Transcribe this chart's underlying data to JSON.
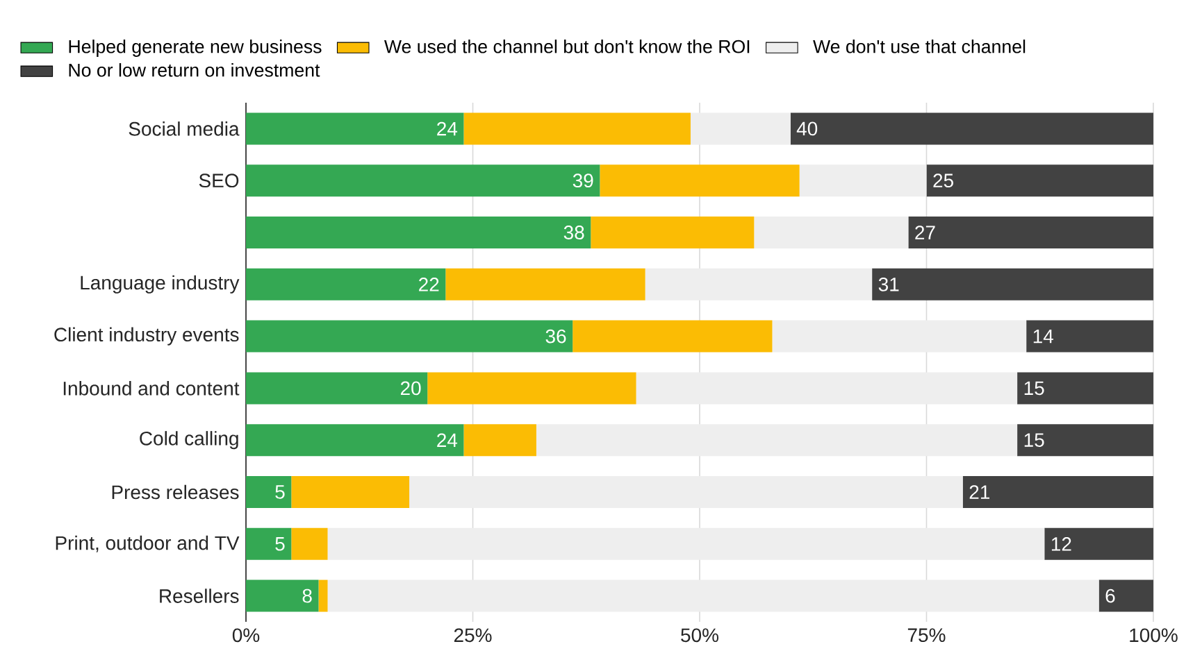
{
  "chart_data": {
    "type": "bar",
    "orientation": "horizontal",
    "stacked": true,
    "legend": "top",
    "grid": "x",
    "categories": [
      "Social media",
      "SEO",
      null,
      "Language industry",
      "Client industry events",
      "Inbound and content",
      "Cold calling",
      "Press releases",
      "Print, outdoor and TV",
      "Resellers"
    ],
    "series": [
      {
        "name": "Helped generate new business",
        "color": "#34a853",
        "values": [
          24,
          39,
          38,
          22,
          36,
          20,
          24,
          5,
          5,
          8
        ],
        "value_labels": [
          "24",
          "39",
          "38",
          "22",
          "36",
          "20",
          "24",
          "5",
          "5",
          "8"
        ]
      },
      {
        "name": "We used the channel but don't know the ROI",
        "color": "#fbbc04",
        "values": [
          25,
          22,
          18,
          22,
          22,
          23,
          8,
          13,
          4,
          1
        ]
      },
      {
        "name": "We don't use that channel",
        "color": "#eeeeee",
        "values": [
          11,
          14,
          17,
          25,
          28,
          42,
          53,
          61,
          79,
          85
        ]
      },
      {
        "name": "No or low return on investment",
        "color": "#424242",
        "values": [
          40,
          25,
          27,
          31,
          14,
          15,
          15,
          21,
          12,
          6
        ],
        "value_labels": [
          "40",
          "25",
          "27",
          "31",
          "14",
          "15",
          "15",
          "21",
          "12",
          "6"
        ]
      }
    ],
    "xlim": [
      0,
      100
    ],
    "xticks": [
      {
        "value": 0,
        "label": "0%"
      },
      {
        "value": 25,
        "label": "25%"
      },
      {
        "value": 50,
        "label": "50%"
      },
      {
        "value": 75,
        "label": "75%"
      },
      {
        "value": 100,
        "label": "100%"
      }
    ]
  }
}
